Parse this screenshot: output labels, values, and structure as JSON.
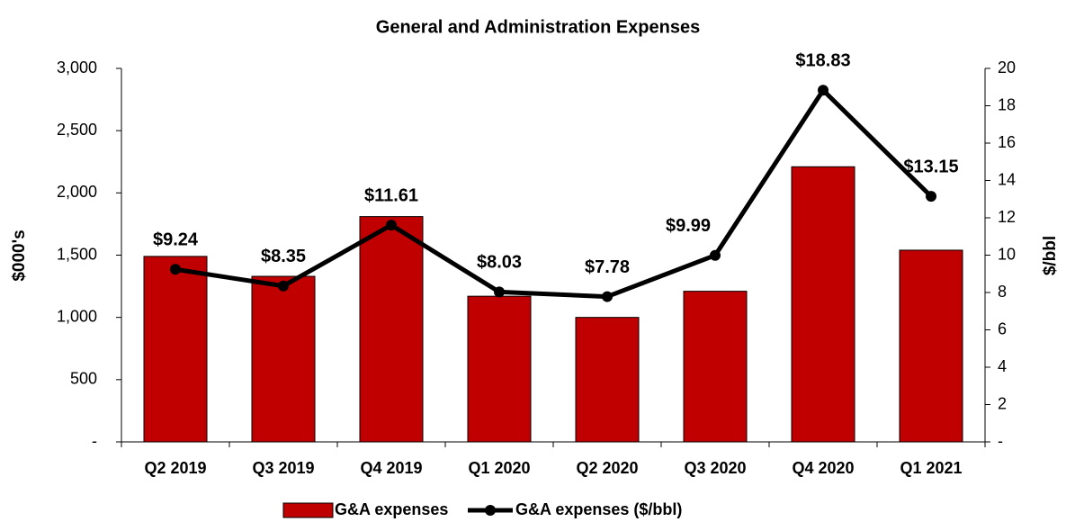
{
  "chart_data": {
    "type": "bar-line",
    "title": "General and Administration Expenses",
    "y_label": "$000's",
    "y2_label": "$/bbl",
    "categories": [
      "Q2 2019",
      "Q3 2019",
      "Q4 2019",
      "Q1 2020",
      "Q2 2020",
      "Q3 2020",
      "Q4 2020",
      "Q1 2021"
    ],
    "series": [
      {
        "name": "G&A expenses",
        "color": "#c00000",
        "type": "bar",
        "values": [
          1490,
          1330,
          1810,
          1170,
          1000,
          1210,
          2210,
          1540
        ]
      },
      {
        "name": "G&A expenses ($/bbl)",
        "color": "#000000",
        "type": "line",
        "axis": "y2",
        "values": [
          9.24,
          8.35,
          11.61,
          8.03,
          7.78,
          9.99,
          18.83,
          13.15
        ],
        "value_labels": [
          "$9.24",
          "$8.35",
          "$11.61",
          "$8.03",
          "$7.78",
          "$9.99",
          "$18.83",
          "$13.15"
        ]
      }
    ],
    "ylim": [
      0,
      3000
    ],
    "yticks": [
      {
        "value": 0,
        "label": "-"
      },
      500,
      {
        "value": 1000,
        "label": "1,000"
      },
      {
        "value": 1500,
        "label": "1,500"
      },
      {
        "value": 2000,
        "label": "2,000"
      },
      {
        "value": 2500,
        "label": "2,500"
      },
      {
        "value": 3000,
        "label": "3,000"
      }
    ],
    "y2lim": [
      0,
      20
    ],
    "y2ticks": [
      {
        "value": 0,
        "label": "-"
      },
      2,
      4,
      6,
      8,
      10,
      12,
      14,
      16,
      18,
      20
    ],
    "grid": false,
    "legend": "bottom"
  }
}
